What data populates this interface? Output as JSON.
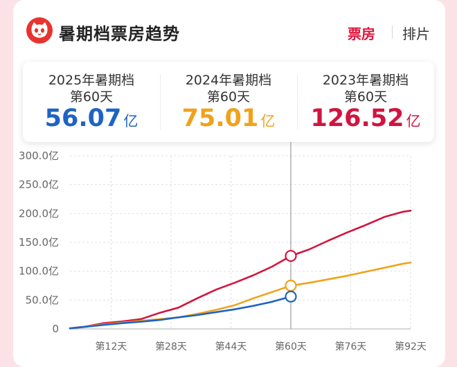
{
  "header": {
    "title": "暑期档票房趋势",
    "tab_box_office": "票房",
    "tab_schedule": "排片",
    "logo_icon": "cat-face-logo-icon"
  },
  "stats": [
    {
      "line1": "2025年暑期档",
      "line2": "第60天",
      "value": "56.07",
      "unit": "亿",
      "color": "#1e63c4"
    },
    {
      "line1": "2024年暑期档",
      "line2": "第60天",
      "value": "75.01",
      "unit": "亿",
      "color": "#f0a21c"
    },
    {
      "line1": "2023年暑期档",
      "line2": "第60天",
      "value": "126.52",
      "unit": "亿",
      "color": "#d1143e"
    }
  ],
  "chart_data": {
    "type": "line",
    "xlim": [
      1,
      92
    ],
    "ylim": [
      0,
      300
    ],
    "y_ticks": [
      {
        "value": 300,
        "label": "300.0亿"
      },
      {
        "value": 250,
        "label": "250.0亿"
      },
      {
        "value": 200,
        "label": "200.0亿"
      },
      {
        "value": 150,
        "label": "150.0亿"
      },
      {
        "value": 100,
        "label": "100.0亿"
      },
      {
        "value": 50,
        "label": "50.0亿"
      },
      {
        "value": 0,
        "label": "0"
      }
    ],
    "x_ticks": [
      {
        "value": 12,
        "label": "第12天"
      },
      {
        "value": 28,
        "label": "第28天"
      },
      {
        "value": 44,
        "label": "第44天"
      },
      {
        "value": 60,
        "label": "第60天"
      },
      {
        "value": 76,
        "label": "第76天"
      },
      {
        "value": 92,
        "label": "第92天"
      }
    ],
    "marker_day": 60,
    "grid": true,
    "series": [
      {
        "color": "#d1143e",
        "x": [
          1,
          5,
          10,
          15,
          20,
          25,
          30,
          35,
          40,
          45,
          50,
          55,
          60,
          65,
          70,
          75,
          80,
          85,
          90,
          92
        ],
        "values": [
          1,
          4,
          10,
          13,
          17,
          28,
          37,
          53,
          68,
          80,
          93,
          108,
          126.52,
          138,
          153,
          167,
          180,
          194,
          203,
          205
        ]
      },
      {
        "color": "#f0a21c",
        "x": [
          1,
          5,
          10,
          15,
          20,
          25,
          30,
          35,
          40,
          45,
          50,
          55,
          60,
          65,
          70,
          75,
          80,
          85,
          90,
          92
        ],
        "values": [
          1,
          4,
          8,
          11,
          14,
          17,
          20,
          26,
          33,
          41,
          53,
          64,
          75.01,
          80,
          86,
          92,
          99,
          106,
          113,
          115
        ]
      },
      {
        "color": "#1e63c4",
        "x": [
          1,
          5,
          10,
          15,
          20,
          25,
          30,
          35,
          40,
          45,
          50,
          55,
          60
        ],
        "values": [
          1,
          3.5,
          7,
          10,
          12.5,
          15.5,
          20,
          24,
          29,
          34,
          40,
          47,
          56.07
        ]
      }
    ]
  }
}
